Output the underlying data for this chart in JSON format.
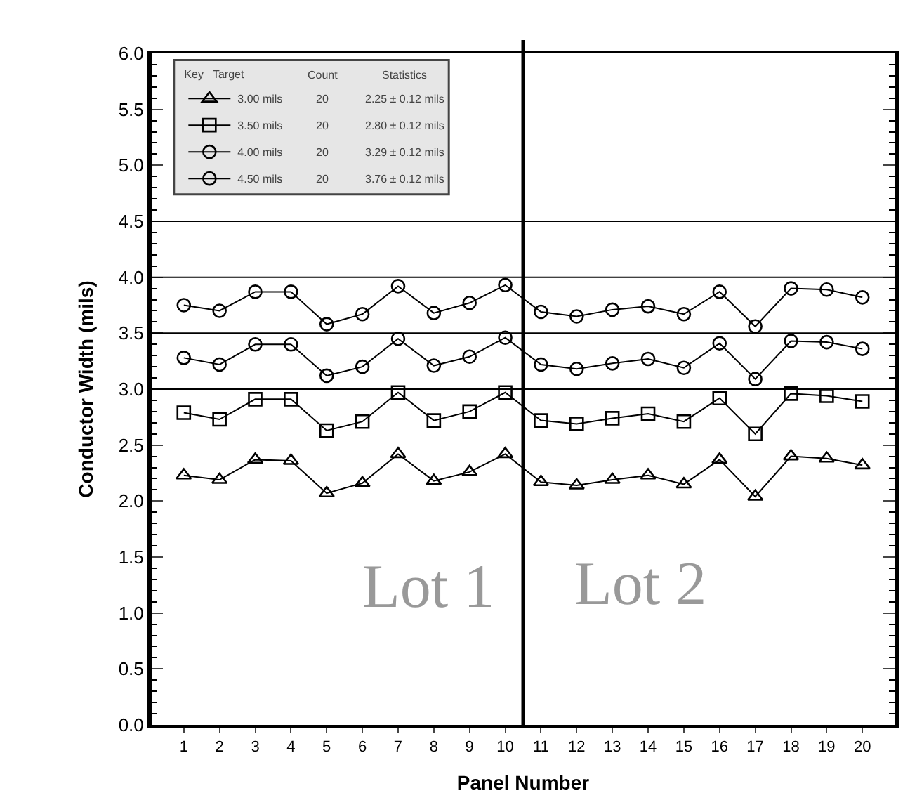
{
  "chart_data": {
    "type": "line",
    "xlabel": "Panel Number",
    "ylabel": "Conductor Width (mils)",
    "x": [
      1,
      2,
      3,
      4,
      5,
      6,
      7,
      8,
      9,
      10,
      11,
      12,
      13,
      14,
      15,
      16,
      17,
      18,
      19,
      20
    ],
    "series": [
      {
        "name": "3.00 mils",
        "color": "#000000",
        "marker": "triangle",
        "values": [
          2.23,
          2.19,
          2.37,
          2.36,
          2.07,
          2.16,
          2.42,
          2.18,
          2.26,
          2.42,
          2.17,
          2.14,
          2.19,
          2.23,
          2.15,
          2.37,
          2.04,
          2.4,
          2.38,
          2.32
        ]
      },
      {
        "name": "3.50 mils",
        "color": "#000000",
        "marker": "square",
        "values": [
          2.79,
          2.73,
          2.91,
          2.91,
          2.63,
          2.71,
          2.97,
          2.72,
          2.8,
          2.97,
          2.72,
          2.69,
          2.74,
          2.78,
          2.71,
          2.92,
          2.6,
          2.96,
          2.94,
          2.89
        ]
      },
      {
        "name": "4.00 mils",
        "color": "#000000",
        "marker": "circle",
        "values": [
          3.28,
          3.22,
          3.4,
          3.4,
          3.12,
          3.2,
          3.45,
          3.21,
          3.29,
          3.46,
          3.22,
          3.18,
          3.23,
          3.27,
          3.19,
          3.41,
          3.09,
          3.43,
          3.42,
          3.36
        ]
      },
      {
        "name": "4.50 mils",
        "color": "#000000",
        "marker": "circle",
        "values": [
          3.75,
          3.7,
          3.87,
          3.87,
          3.58,
          3.67,
          3.92,
          3.68,
          3.77,
          3.93,
          3.69,
          3.65,
          3.71,
          3.74,
          3.67,
          3.87,
          3.56,
          3.9,
          3.89,
          3.82
        ]
      }
    ],
    "legend": "top left",
    "legend_title": "Key   Target",
    "annotations": [
      "Count",
      "20",
      "20",
      "20",
      "20",
      "Statistics",
      "2.25 ± 0.12 mils",
      "2.80 ± 0.12 mils",
      "3.29 ± 0.12 mils",
      "3.76 ± 0.12 mils",
      "Lot 1",
      "Lot 2"
    ],
    "ref_lines": [
      {
        "axis": "y",
        "value": 3.0,
        "color": "#000000"
      },
      {
        "axis": "y",
        "value": 3.5,
        "color": "#000000"
      },
      {
        "axis": "y",
        "value": 4.0,
        "color": "#000000"
      },
      {
        "axis": "y",
        "value": 4.5,
        "color": "#000000"
      },
      {
        "axis": "x",
        "value": 10.5,
        "color": "#000000"
      }
    ],
    "xlim": [
      0.1,
      20.9
    ],
    "xticks": [
      1,
      2,
      3,
      4,
      5,
      6,
      7,
      8,
      9,
      10,
      11,
      12,
      13,
      14,
      15,
      16,
      17,
      18,
      19,
      20
    ],
    "ylim": [
      0,
      6
    ],
    "yticks": [
      {
        "value": 0,
        "label": "0.0"
      },
      0.5,
      {
        "value": 1,
        "label": "1.0"
      },
      1.5,
      {
        "value": 2,
        "label": "2.0"
      },
      2.5,
      {
        "value": 3,
        "label": "3.0"
      },
      3.5,
      {
        "value": 4,
        "label": "4.0"
      },
      4.5,
      {
        "value": 5,
        "label": "5.0"
      },
      5.5,
      {
        "value": 6,
        "label": "6.0"
      }
    ],
    "grid": false,
    "line_style": "solid"
  }
}
